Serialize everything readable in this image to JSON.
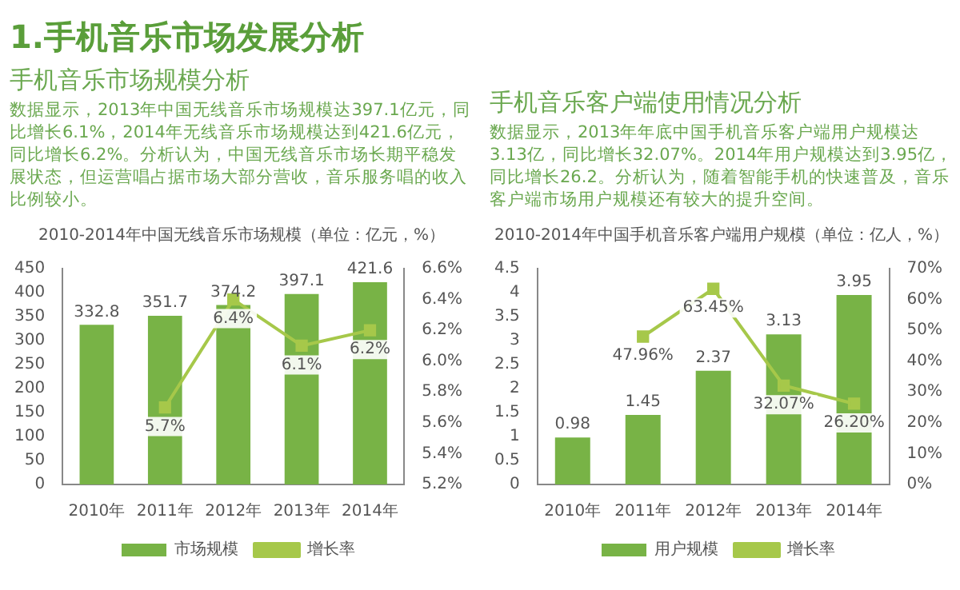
{
  "chart_data": [
    {
      "type": "bar",
      "title": "2010-2014年中国无线音乐市场规模（单位：亿元，%）",
      "annotations": [
        "1.手机音乐市场发展分析",
        "手机音乐市场规模分析",
        "数据显示，2013年中国无线音乐市场规模达397.1亿元，同比增长6.1%，2014年无线音乐市场规模达到421.6亿元，同比增长6.2%。分析认为，中国无线音乐市场长期平稳发展状态，但运营唱占据市场大部分营收，音乐服务唱的收入比例较小。"
      ],
      "categories": [
        "2010年",
        "2011年",
        "2012年",
        "2013年",
        "2014年"
      ],
      "series": [
        {
          "name": "市场规模",
          "color": "#78b346",
          "values": [
            332.8,
            351.7,
            374.2,
            397.1,
            421.6
          ],
          "value_labels": [
            "332.8",
            "351.7",
            "374.2",
            "397.1",
            "421.6"
          ]
        },
        {
          "name": "增长率",
          "type": "line",
          "axis": "y2",
          "marker": "square",
          "color": "#a6c84a",
          "values": [
            null,
            5.7,
            6.4,
            6.1,
            6.2
          ],
          "value_labels": [
            null,
            "5.7%",
            "6.4%",
            "6.1%",
            "6.2%"
          ]
        }
      ],
      "ylim": [
        0,
        450
      ],
      "yticks": [
        0,
        50,
        100,
        150,
        200,
        250,
        300,
        350,
        400,
        450
      ],
      "y2lim": [
        5.2,
        6.6
      ],
      "y2ticks": [
        {
          "value": 5.2,
          "label": "5.2%"
        },
        {
          "value": 5.4,
          "label": "5.4%"
        },
        {
          "value": 5.6,
          "label": "5.6%"
        },
        {
          "value": 5.8,
          "label": "5.8%"
        },
        {
          "value": 6.0,
          "label": "6.0%"
        },
        {
          "value": 6.2,
          "label": "6.2%"
        },
        {
          "value": 6.4,
          "label": "6.4%"
        },
        {
          "value": 6.6,
          "label": "6.6%"
        }
      ],
      "legend": "bottom"
    },
    {
      "type": "bar",
      "title": "2010-2014年中国手机音乐客户端用户规模（单位：亿人，%）",
      "annotations": [
        "手机音乐客户端使用情况分析",
        "数据显示，2013年年底中国手机音乐客户端用户规模达3.13亿，同比增长32.07%。2014年用户规模达到3.95亿，同比增长26.2。分析认为，随着智能手机的快速普及，音乐客户端市场用户规模还有较大的提升空间。"
      ],
      "categories": [
        "2010年",
        "2011年",
        "2012年",
        "2013年",
        "2014年"
      ],
      "series": [
        {
          "name": "用户规模",
          "color": "#78b346",
          "values": [
            0.98,
            1.45,
            2.37,
            3.13,
            3.95
          ],
          "value_labels": [
            "0.98",
            "1.45",
            "2.37",
            "3.13",
            "3.95"
          ]
        },
        {
          "name": "增长率",
          "type": "line",
          "axis": "y2",
          "marker": "square",
          "color": "#a6c84a",
          "values": [
            null,
            47.96,
            63.45,
            32.07,
            26.2
          ],
          "value_labels": [
            null,
            "47.96%",
            "63.45%",
            "32.07%",
            "26.20%"
          ]
        }
      ],
      "ylim": [
        0,
        4.5
      ],
      "yticks": [
        0,
        0.5,
        1,
        1.5,
        2,
        2.5,
        3,
        3.5,
        4,
        4.5
      ],
      "y2lim": [
        0,
        70
      ],
      "y2ticks": [
        {
          "value": 0,
          "label": "0%"
        },
        {
          "value": 10,
          "label": "10%"
        },
        {
          "value": 20,
          "label": "20%"
        },
        {
          "value": 30,
          "label": "30%"
        },
        {
          "value": 40,
          "label": "40%"
        },
        {
          "value": 50,
          "label": "50%"
        },
        {
          "value": 60,
          "label": "60%"
        },
        {
          "value": 70,
          "label": "70%"
        }
      ],
      "legend": "bottom"
    }
  ]
}
